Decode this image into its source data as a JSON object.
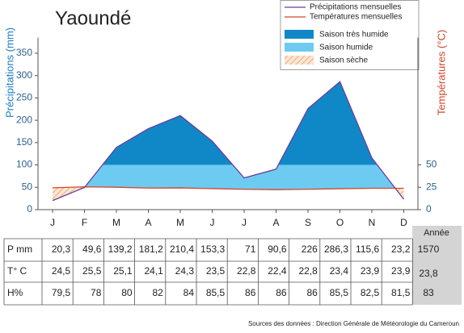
{
  "chart_data": {
    "type": "climate",
    "title": "Yaoundé",
    "ylabel": "Précipitations (mm)",
    "y2label": "Températures (°C)",
    "categories": [
      "J",
      "F",
      "M",
      "A",
      "M",
      "J",
      "J",
      "A",
      "S",
      "O",
      "N",
      "D"
    ],
    "series": [
      {
        "name": "Précipitations mensuelles",
        "color": "#6a3d9a",
        "values": [
          20.3,
          49.6,
          139.2,
          181.2,
          210.4,
          153.3,
          71,
          90.6,
          226,
          286.3,
          115.6,
          23.2
        ],
        "value_labels": [
          "20,3",
          "49,6",
          "139,2",
          "181,2",
          "210,4",
          "153,3",
          "71",
          "90,6",
          "226",
          "286,3",
          "115,6",
          "23,2"
        ]
      },
      {
        "name": "Températures mensuelles",
        "color": "#d2452a",
        "axis": "y2",
        "values": [
          24.5,
          25.5,
          25.1,
          24.1,
          24.3,
          23.5,
          22.8,
          22.4,
          22.8,
          23.4,
          23.9,
          23.9
        ],
        "value_labels": [
          "24,5",
          "25,5",
          "25,1",
          "24,1",
          "24,3",
          "23,5",
          "22,8",
          "22,4",
          "22,8",
          "23,4",
          "23,9",
          "23,9"
        ]
      }
    ],
    "zones": [
      {
        "name": "Saison très humide",
        "color": "#1088c8",
        "from": 100
      },
      {
        "name": "Saison humide",
        "color": "#6dcbf1"
      },
      {
        "name": "Saison sèche",
        "color": "#e39a5a"
      }
    ],
    "ylim": [
      0,
      385
    ],
    "yticks": [
      0,
      50,
      100,
      150,
      200,
      250,
      300,
      350
    ],
    "y2lim": [
      0,
      192.5
    ],
    "y2ticks": [
      0,
      25,
      50
    ]
  },
  "table": {
    "header": "Année",
    "rows": [
      {
        "label": "P mm",
        "total": "1570"
      },
      {
        "label": "T° C",
        "total": "23,8"
      },
      {
        "label": "H%",
        "values": [
          "79,5",
          "78",
          "80",
          "82",
          "84",
          "85,5",
          "86",
          "86",
          "86",
          "85,5",
          "82,5",
          "81,5"
        ],
        "total": "83"
      }
    ]
  },
  "source": "Sources des données : Direction Générale de Météorologie du Cameroun"
}
